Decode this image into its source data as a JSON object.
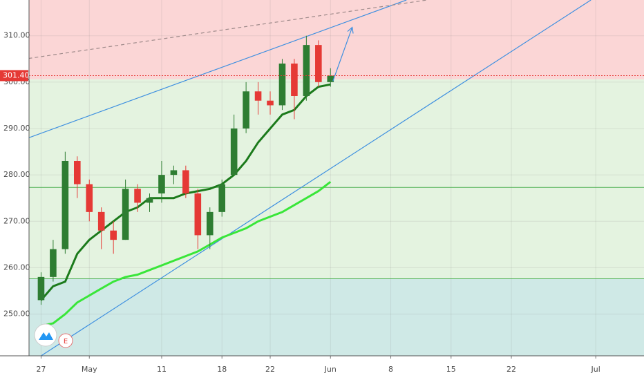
{
  "chart_data": {
    "type": "candlestick",
    "up_color": "#2e7d32",
    "down_color": "#e53935",
    "xlim": [
      -1,
      50
    ],
    "ylim": [
      241,
      317.7
    ],
    "xticks": [
      {
        "value": 0,
        "label": "27"
      },
      {
        "value": 4,
        "label": "May"
      },
      {
        "value": 10,
        "label": "11"
      },
      {
        "value": 15,
        "label": "18"
      },
      {
        "value": 19,
        "label": "22"
      },
      {
        "value": 24,
        "label": "Jun"
      },
      {
        "value": 29,
        "label": "8"
      },
      {
        "value": 34,
        "label": "15"
      },
      {
        "value": 39,
        "label": "22"
      },
      {
        "value": 46,
        "label": "Jul"
      }
    ],
    "yticks": [
      {
        "value": 250,
        "label": "250.00"
      },
      {
        "value": 260,
        "label": "260.00"
      },
      {
        "value": 270,
        "label": "270.00"
      },
      {
        "value": 280,
        "label": "280.00"
      },
      {
        "value": 290,
        "label": "290.00"
      },
      {
        "value": 300,
        "label": "300.00"
      },
      {
        "value": 310,
        "label": "310.00"
      }
    ],
    "grid": true,
    "zones": [
      {
        "from": 300.6,
        "to": 317.7,
        "color": "#fbd6d6"
      },
      {
        "from": 257.6,
        "to": 300.6,
        "color": "#e4f3e0"
      },
      {
        "from": 241,
        "to": 257.6,
        "color": "#cfe9e6"
      }
    ],
    "levels": [
      277.3,
      257.6
    ],
    "level_color": "#4caf50",
    "candles": {
      "x": [
        0,
        1,
        2,
        3,
        4,
        5,
        6,
        7,
        8,
        9,
        10,
        11,
        12,
        13,
        14,
        15,
        16,
        17,
        18,
        19,
        20,
        21,
        22,
        23,
        24
      ],
      "open": [
        253,
        258,
        264,
        283,
        278,
        272,
        268,
        266,
        277,
        274,
        276,
        280,
        281,
        276,
        267,
        272,
        280,
        290,
        298,
        296,
        295,
        304,
        297,
        308,
        300
      ],
      "high": [
        259,
        266,
        285,
        284,
        279,
        273,
        270,
        279,
        278,
        276,
        283,
        282,
        282,
        277,
        273,
        279,
        293,
        300,
        300,
        298,
        305,
        305,
        310,
        309,
        303
      ],
      "low": [
        252,
        257,
        263,
        275,
        270,
        264,
        263,
        266,
        272,
        272,
        274,
        278,
        275,
        264,
        264,
        271,
        280,
        289,
        293,
        293,
        294,
        292,
        296,
        299,
        299
      ],
      "close": [
        258,
        264,
        283,
        278,
        272,
        268,
        266,
        277,
        274,
        275,
        280,
        281,
        276,
        267,
        272,
        278,
        290,
        298,
        296,
        295,
        304,
        297,
        308,
        300,
        301.4
      ]
    },
    "series": [
      {
        "color": "#1b7a1b",
        "width": 3,
        "x": [
          0,
          1,
          2,
          3,
          4,
          5,
          6,
          7,
          8,
          9,
          10,
          11,
          12,
          13,
          14,
          15,
          16,
          17,
          18,
          19,
          20,
          21,
          22,
          23,
          24
        ],
        "values": [
          253,
          256,
          257,
          263,
          266,
          268,
          270,
          272,
          273,
          275,
          275,
          275,
          276,
          276.5,
          277,
          278,
          280,
          283,
          287,
          290,
          293,
          294,
          297,
          299,
          299.5
        ]
      },
      {
        "color": "#39e639",
        "width": 3,
        "x": [
          0,
          1,
          2,
          3,
          4,
          5,
          6,
          7,
          8,
          9,
          10,
          11,
          12,
          13,
          14,
          15,
          16,
          17,
          18,
          19,
          20,
          21,
          22,
          23,
          24
        ],
        "values": [
          247.5,
          248,
          250,
          252.5,
          254,
          255.5,
          257,
          258,
          258.5,
          259.5,
          260.5,
          261.5,
          262.5,
          263.5,
          265,
          266.5,
          267.5,
          268.5,
          270,
          271,
          272,
          273.5,
          275,
          276.5,
          278.5
        ]
      }
    ],
    "trendlines": [
      {
        "color": "#3d8fe0",
        "dashed": false,
        "x": [
          -1.03,
          30.3
        ],
        "y": [
          288,
          317.7
        ]
      },
      {
        "color": "#3d8fe0",
        "dashed": false,
        "x": [
          0,
          45.6
        ],
        "y": [
          241,
          317.7
        ]
      },
      {
        "color": "#9e8a8a",
        "dashed": true,
        "x": [
          -1.03,
          32
        ],
        "y": [
          305.1,
          317.7
        ]
      }
    ],
    "arrow": {
      "color": "#3d8fe0",
      "x": [
        24.2,
        25.8
      ],
      "y": [
        300.2,
        311.8
      ]
    },
    "last_price": 301.4,
    "last_price_label": "301.40",
    "last_price_color": "#e53935",
    "earnings_marker": "E"
  }
}
